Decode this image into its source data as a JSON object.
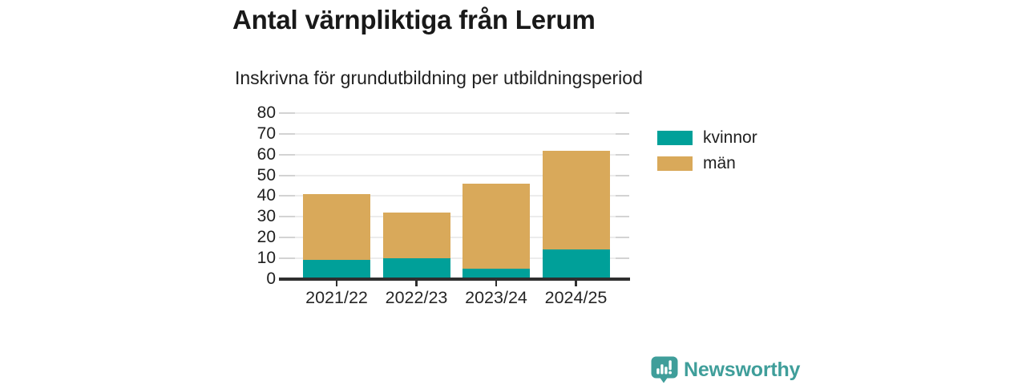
{
  "chart_data": {
    "type": "bar",
    "stacked": true,
    "title": "Antal värnpliktiga från Lerum",
    "subtitle": "Inskrivna för grundutbildning per utbildningsperiod",
    "categories": [
      "2021/22",
      "2022/23",
      "2023/24",
      "2024/25"
    ],
    "series": [
      {
        "name": "kvinnor",
        "color": "#00a099",
        "values": [
          9,
          10,
          5,
          14
        ]
      },
      {
        "name": "män",
        "color": "#d9a95a",
        "values": [
          32,
          22,
          41,
          48
        ]
      }
    ],
    "stacked_totals": [
      41,
      32,
      46,
      62
    ],
    "ylim": [
      0,
      80
    ],
    "yticks": [
      0,
      10,
      20,
      30,
      40,
      50,
      60,
      70,
      80
    ],
    "grid": true,
    "legend_position": "right-top"
  },
  "colors": {
    "kvinnor": "#00a099",
    "man": "#d9a95a",
    "axis": "#2f2f2f",
    "gridline": "#ececec",
    "tick_stub": "#d3d3d3",
    "title_text": "#191919",
    "label_text": "#1e1e1e",
    "brand": "#3f9e9a",
    "background": "#ffffff"
  },
  "brand": {
    "name": "Newsworthy"
  }
}
